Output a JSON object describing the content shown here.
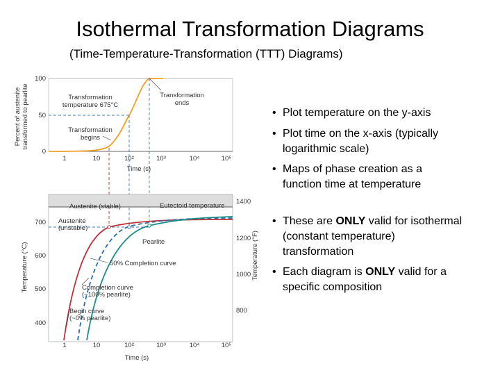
{
  "header": {
    "title": "Isothermal Transformation Diagrams",
    "subtitle": "(Time-Temperature-Transformation (TTT) Diagrams)"
  },
  "figure": {
    "top": {
      "ylabel": [
        "Percent of austenite",
        "transformed to pearlite"
      ],
      "yticks": [
        "100",
        "50",
        "0"
      ],
      "xticks": [
        "1",
        "10",
        "10²",
        "10³",
        "10⁴",
        "10⁵"
      ],
      "xlabel": "Time (s)",
      "notes": {
        "temp": [
          "Transformation",
          "temperature 675°C"
        ],
        "ends": [
          "Transformation",
          "ends"
        ],
        "begins": [
          "Transformation",
          "begins"
        ]
      }
    },
    "bottom": {
      "ylabel": "Temperature (°C)",
      "y2label": "Temperature (°F)",
      "yticks": [
        "700",
        "600",
        "500",
        "400"
      ],
      "y2ticks": [
        "1400",
        "1200",
        "1000",
        "800"
      ],
      "xticks": [
        "1",
        "10",
        "10²",
        "10³",
        "10⁴",
        "10⁵"
      ],
      "xlabel": "Time (s)",
      "notes": {
        "stable": "Austenite (stable)",
        "eutectoid": "Eutectoid temperature",
        "unstable": [
          "Austenite",
          "(unstable)"
        ],
        "pearlite": "Pearlite",
        "half": "50% Completion curve",
        "complete": [
          "Completion curve",
          "(~100% pearlite)"
        ],
        "begin": [
          "Begin curve",
          "(~0% pearlite)"
        ]
      }
    }
  },
  "bullets": [
    [
      "Plot temperature on the y-axis"
    ],
    [
      "Plot time on the x-axis (typically",
      "logarithmic scale)"
    ],
    [
      "Maps of phase creation as a",
      "function time at temperature"
    ],
    [
      [
        "These are ",
        "ONLY",
        " valid for isothermal"
      ],
      "(constant temperature)",
      "transformation"
    ],
    [
      [
        "Each diagram is ",
        "ONLY",
        " valid for a"
      ],
      "specific composition"
    ]
  ]
}
